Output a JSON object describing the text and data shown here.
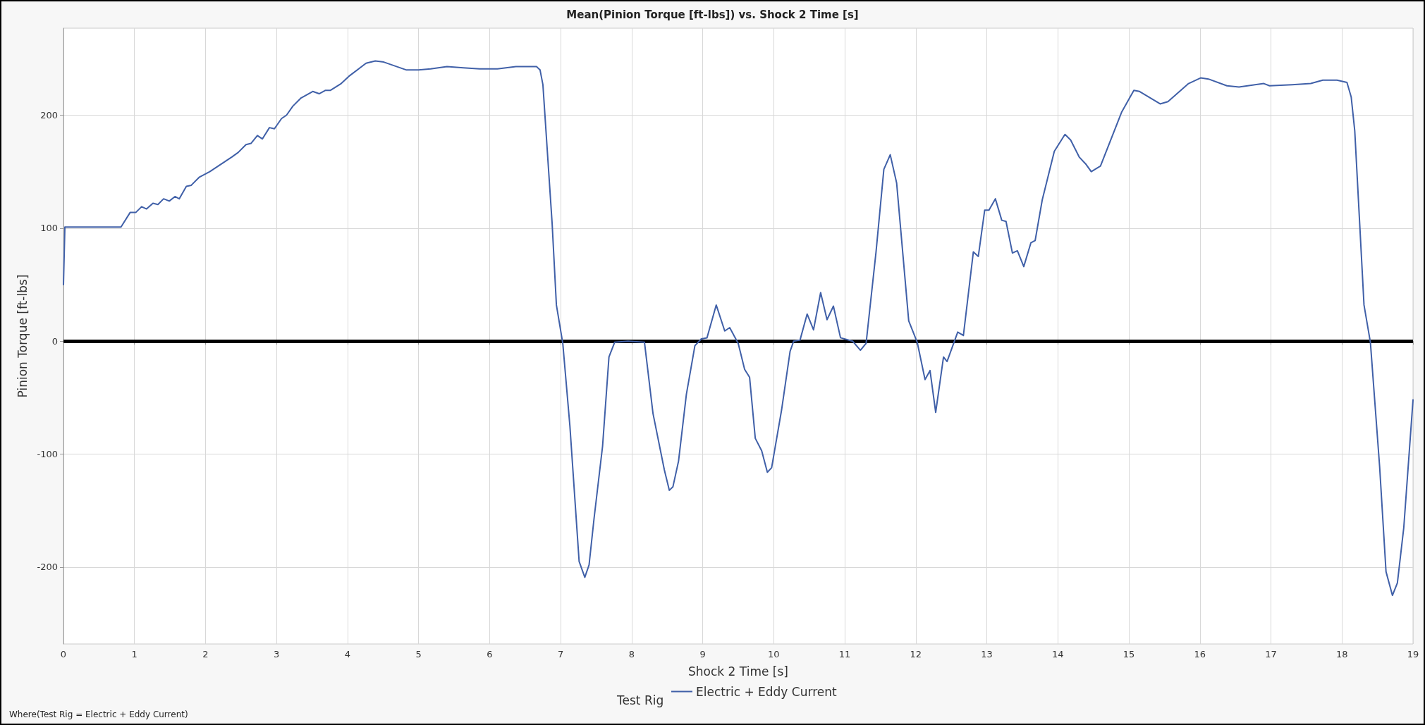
{
  "chart_data": {
    "type": "line",
    "title": "Mean(Pinion Torque [ft-lbs]) vs. Shock 2 Time [s]",
    "xlabel": "Shock 2 Time [s]",
    "ylabel": "Pinion Torque [ft-lbs]",
    "legend_title": "Test Rig",
    "legend": "bottom",
    "annotations": [
      "Where(Test Rig = Electric + Eddy Current)"
    ],
    "xlim": [
      0,
      19
    ],
    "xticks": [
      0,
      1,
      2,
      3,
      4,
      5,
      6,
      7,
      8,
      9,
      10,
      11,
      12,
      13,
      14,
      15,
      16,
      17,
      18,
      19
    ],
    "ylim": [
      -268,
      277
    ],
    "yticks": [
      -200,
      -100,
      0,
      100,
      200
    ],
    "grid": true,
    "marker": "none",
    "line_style": "solid",
    "ref_lines": [
      {
        "axis": "y",
        "value": 0,
        "color": "#000000"
      }
    ],
    "series": [
      {
        "name": "Electric + Eddy Current",
        "color": "#4060a8",
        "x": [
          0,
          0.02,
          0.81,
          0.94,
          1.02,
          1.1,
          1.17,
          1.26,
          1.33,
          1.41,
          1.49,
          1.57,
          1.63,
          1.73,
          1.8,
          1.91,
          2.06,
          2.37,
          2.46,
          2.57,
          2.64,
          2.73,
          2.8,
          2.9,
          2.97,
          3.07,
          3.14,
          3.23,
          3.34,
          3.51,
          3.6,
          3.69,
          3.76,
          3.91,
          4.03,
          4.26,
          4.39,
          4.51,
          4.83,
          5.0,
          5.17,
          5.4,
          5.63,
          5.86,
          6.11,
          6.37,
          6.66,
          6.71,
          6.75,
          6.88,
          6.94,
          7.03,
          7.13,
          7.26,
          7.34,
          7.4,
          7.47,
          7.59,
          7.68,
          7.76,
          7.95,
          8.18,
          8.3,
          8.46,
          8.53,
          8.58,
          8.66,
          8.77,
          8.89,
          8.98,
          9.06,
          9.19,
          9.31,
          9.38,
          9.5,
          9.59,
          9.66,
          9.74,
          9.83,
          9.91,
          9.97,
          10.11,
          10.23,
          10.28,
          10.37,
          10.47,
          10.56,
          10.66,
          10.75,
          10.84,
          10.94,
          11.11,
          11.22,
          11.3,
          11.44,
          11.55,
          11.64,
          11.73,
          11.9,
          12.02,
          12.13,
          12.2,
          12.28,
          12.39,
          12.44,
          12.59,
          12.67,
          12.81,
          12.88,
          12.97,
          13.03,
          13.12,
          13.21,
          13.27,
          13.36,
          13.43,
          13.52,
          13.62,
          13.68,
          13.78,
          13.95,
          14.1,
          14.18,
          14.3,
          14.39,
          14.47,
          14.6,
          14.9,
          15.07,
          15.15,
          15.44,
          15.55,
          15.84,
          16.01,
          16.12,
          16.38,
          16.55,
          16.9,
          16.98,
          17.3,
          17.56,
          17.73,
          17.93,
          18.07,
          18.13,
          18.18,
          18.31,
          18.4,
          18.53,
          18.62,
          18.71,
          18.78,
          18.87,
          19.0
        ],
        "values": [
          50,
          101,
          101,
          114,
          114,
          119,
          117,
          122,
          121,
          126,
          124,
          128,
          126,
          137,
          138,
          145,
          150,
          163,
          167,
          174,
          175,
          182,
          179,
          189,
          188,
          197,
          200,
          208,
          215,
          221,
          219,
          222,
          222,
          228,
          235,
          246,
          248,
          247,
          240,
          240,
          241,
          243,
          242,
          241,
          241,
          243,
          243,
          240,
          227,
          104,
          32,
          -2,
          -75,
          -195,
          -209,
          -198,
          -157,
          -93,
          -14,
          -1,
          0,
          -1,
          -64,
          -114,
          -132,
          -129,
          -106,
          -47,
          -4,
          2,
          3,
          32,
          9,
          12,
          -2,
          -25,
          -32,
          -86,
          -97,
          -116,
          -112,
          -61,
          -9,
          0,
          1,
          24,
          10,
          43,
          19,
          31,
          3,
          0,
          -8,
          -2,
          79,
          152,
          165,
          140,
          18,
          -1,
          -34,
          -26,
          -63,
          -14,
          -18,
          8,
          5,
          79,
          75,
          116,
          116,
          126,
          107,
          106,
          78,
          80,
          66,
          87,
          89,
          125,
          168,
          183,
          178,
          163,
          157,
          150,
          155,
          203,
          222,
          221,
          210,
          212,
          228,
          233,
          232,
          226,
          225,
          228,
          226,
          227,
          228,
          231,
          231,
          229,
          216,
          186,
          32,
          -1,
          -111,
          -204,
          -225,
          -214,
          -165,
          -52
        ]
      }
    ]
  }
}
